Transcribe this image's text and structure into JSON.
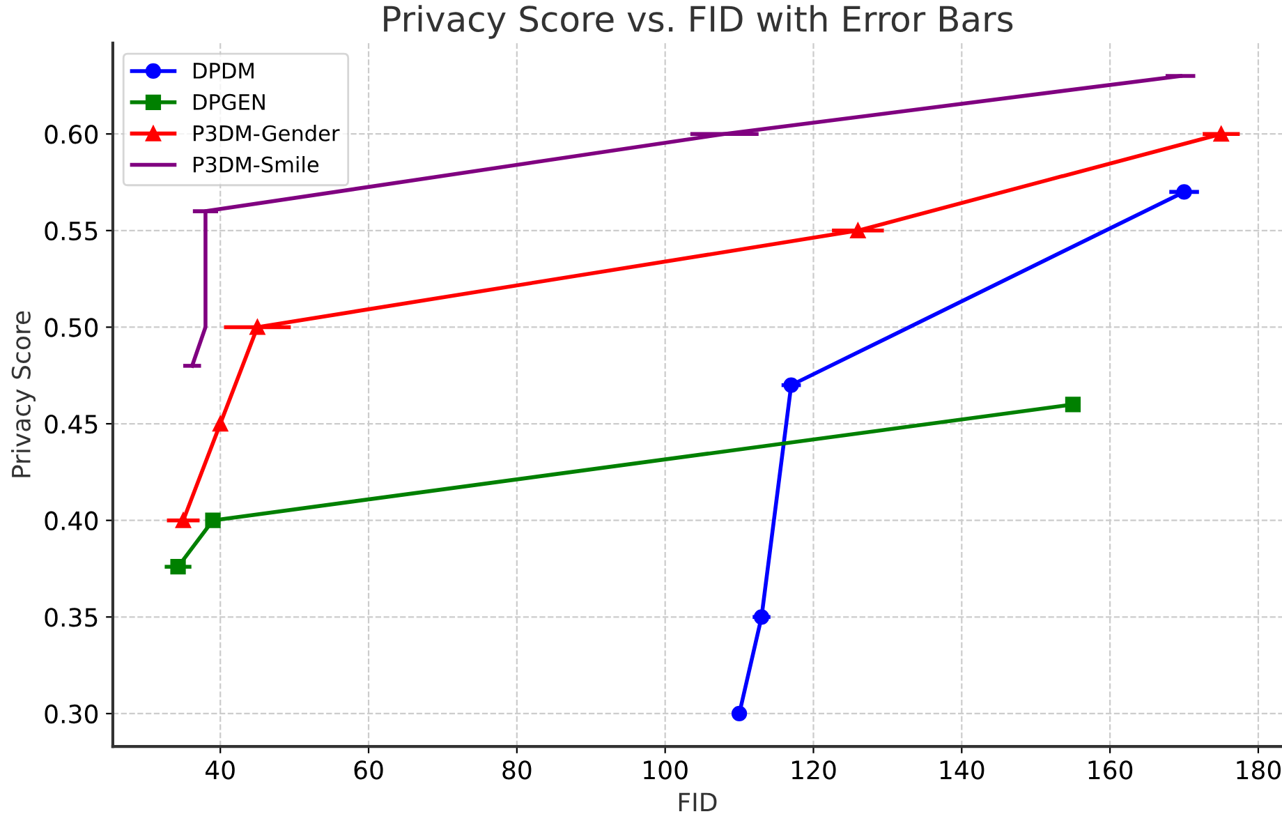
{
  "chart_data": {
    "type": "line",
    "title": "Privacy Score vs. FID with Error Bars",
    "xlabel": "FID",
    "ylabel": "Privacy Score",
    "xlim": [
      25.5,
      183.2
    ],
    "ylim": [
      0.283,
      0.647
    ],
    "xticks": [
      40,
      60,
      80,
      100,
      120,
      140,
      160,
      180
    ],
    "yticks": [
      {
        "value": 0.3,
        "label": "0.30"
      },
      {
        "value": 0.35,
        "label": "0.35"
      },
      {
        "value": 0.4,
        "label": "0.40"
      },
      {
        "value": 0.45,
        "label": "0.45"
      },
      {
        "value": 0.5,
        "label": "0.50"
      },
      {
        "value": 0.55,
        "label": "0.55"
      },
      {
        "value": 0.6,
        "label": "0.60"
      }
    ],
    "grid": true,
    "legend": "top left",
    "series": [
      {
        "name": "DPDM",
        "color": "#0000ff",
        "marker": "circle",
        "x": [
          110,
          113,
          117,
          170
        ],
        "values": [
          0.3,
          0.35,
          0.47,
          0.57
        ],
        "xerrors": [
          1,
          1.2,
          1.3,
          2
        ]
      },
      {
        "name": "DPGEN",
        "color": "#008000",
        "marker": "square",
        "x": [
          34.3,
          39,
          155
        ],
        "values": [
          0.376,
          0.4,
          0.46
        ],
        "xerrors": [
          1.8,
          1,
          null
        ]
      },
      {
        "name": "P3DM-Gender",
        "color": "#ff0000",
        "marker": "triangle",
        "x": [
          35,
          40,
          45,
          126,
          175
        ],
        "values": [
          0.4,
          0.45,
          0.5,
          0.55,
          0.6
        ],
        "xerrors": [
          2.2,
          null,
          4.5,
          3.5,
          2.5
        ]
      },
      {
        "name": "P3DM-Smile",
        "color": "#800080",
        "marker": "none",
        "x": [
          36.2,
          38,
          38,
          108,
          169.5
        ],
        "values": [
          0.48,
          0.5,
          0.56,
          0.6,
          0.63
        ],
        "xerrors": [
          1.2,
          null,
          1.7,
          4.6,
          2
        ]
      }
    ]
  }
}
